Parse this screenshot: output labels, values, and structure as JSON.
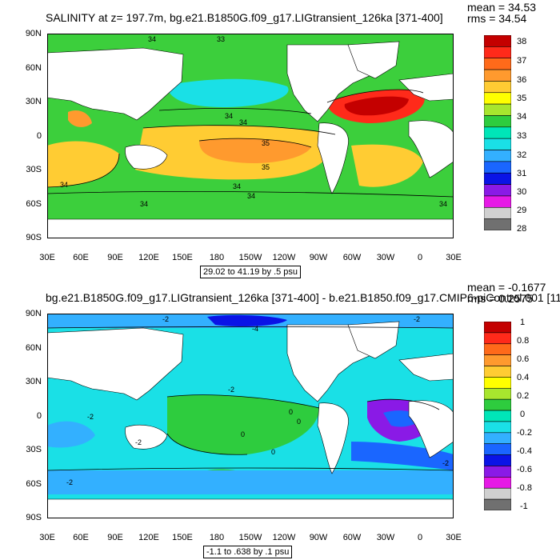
{
  "panels": [
    {
      "title": "SALINITY at z= 197.7m, bg.e21.B1850G.f09_g17.LIGtransient_126ka [371-400]",
      "mean": "mean = 34.53",
      "rms": "rms = 34.54",
      "info": "29.02 to 41.19 by .5 psu",
      "colorbar": {
        "labels": [
          "38",
          "37",
          "36",
          "35",
          "34",
          "33",
          "32",
          "31",
          "30",
          "29",
          "28"
        ],
        "colors": [
          "#c40000",
          "#ff2a1a",
          "#ff6a1a",
          "#ff9a2e",
          "#ffcc33",
          "#ffff00",
          "#a8e62e",
          "#2ecc3e",
          "#00e6b8",
          "#1ae0e6",
          "#33b0ff",
          "#1a66ff",
          "#0a14e6",
          "#8a1ae6",
          "#e61ae6",
          "#d0d0d0",
          "#707070"
        ]
      },
      "contour_labels": [
        "33",
        "34",
        "34",
        "34",
        "35",
        "35",
        "34",
        "34",
        "34",
        "34",
        "34"
      ]
    },
    {
      "title": "bg.e21.B1850G.f09_g17.LIGtransient_126ka [371-400] - b.e21.B1850.f09_g17.CMIP6-piControl.001 [11",
      "mean": "mean = -0.1677",
      "rms": "rms = 0.2575",
      "info": "-1.1 to .638 by .1 psu",
      "colorbar": {
        "labels": [
          "1",
          "0.8",
          "0.6",
          "0.4",
          "0.2",
          "0",
          "-0.2",
          "-0.4",
          "-0.6",
          "-0.8",
          "-1"
        ],
        "colors": [
          "#c40000",
          "#ff2a1a",
          "#ff6a1a",
          "#ff9a2e",
          "#ffcc33",
          "#ffff00",
          "#a8e62e",
          "#2ecc3e",
          "#00e6b8",
          "#1ae0e6",
          "#33b0ff",
          "#1a66ff",
          "#0a14e6",
          "#8a1ae6",
          "#e61ae6",
          "#d0d0d0",
          "#707070"
        ]
      },
      "contour_labels": [
        "-2",
        "-4",
        "-2",
        "-2",
        "-2",
        "-2",
        "0",
        "0",
        "0",
        "0",
        "-2",
        "-2"
      ]
    }
  ],
  "axes": {
    "y_ticks": [
      "90N",
      "60N",
      "30N",
      "0",
      "30S",
      "60S",
      "90S"
    ],
    "x_ticks": [
      "30E",
      "60E",
      "90E",
      "120E",
      "150E",
      "180",
      "150W",
      "120W",
      "90W",
      "60W",
      "30W",
      "0",
      "30E"
    ]
  },
  "palette": {
    "land": "#ffffff",
    "sal_base": "#3ccf3c",
    "sal_low": "#1ae0e6",
    "sal_mid": "#ffcc33",
    "sal_hi": "#ff9a2e",
    "sal_top": "#ff2a1a",
    "sal_max": "#c40000",
    "diff_base": "#1ae0e6",
    "diff_pos": "#2ecc3e",
    "diff_lo": "#33b0ff",
    "diff_lower": "#1a66ff",
    "diff_min": "#0a14e6",
    "diff_purple": "#8a1ae6"
  }
}
